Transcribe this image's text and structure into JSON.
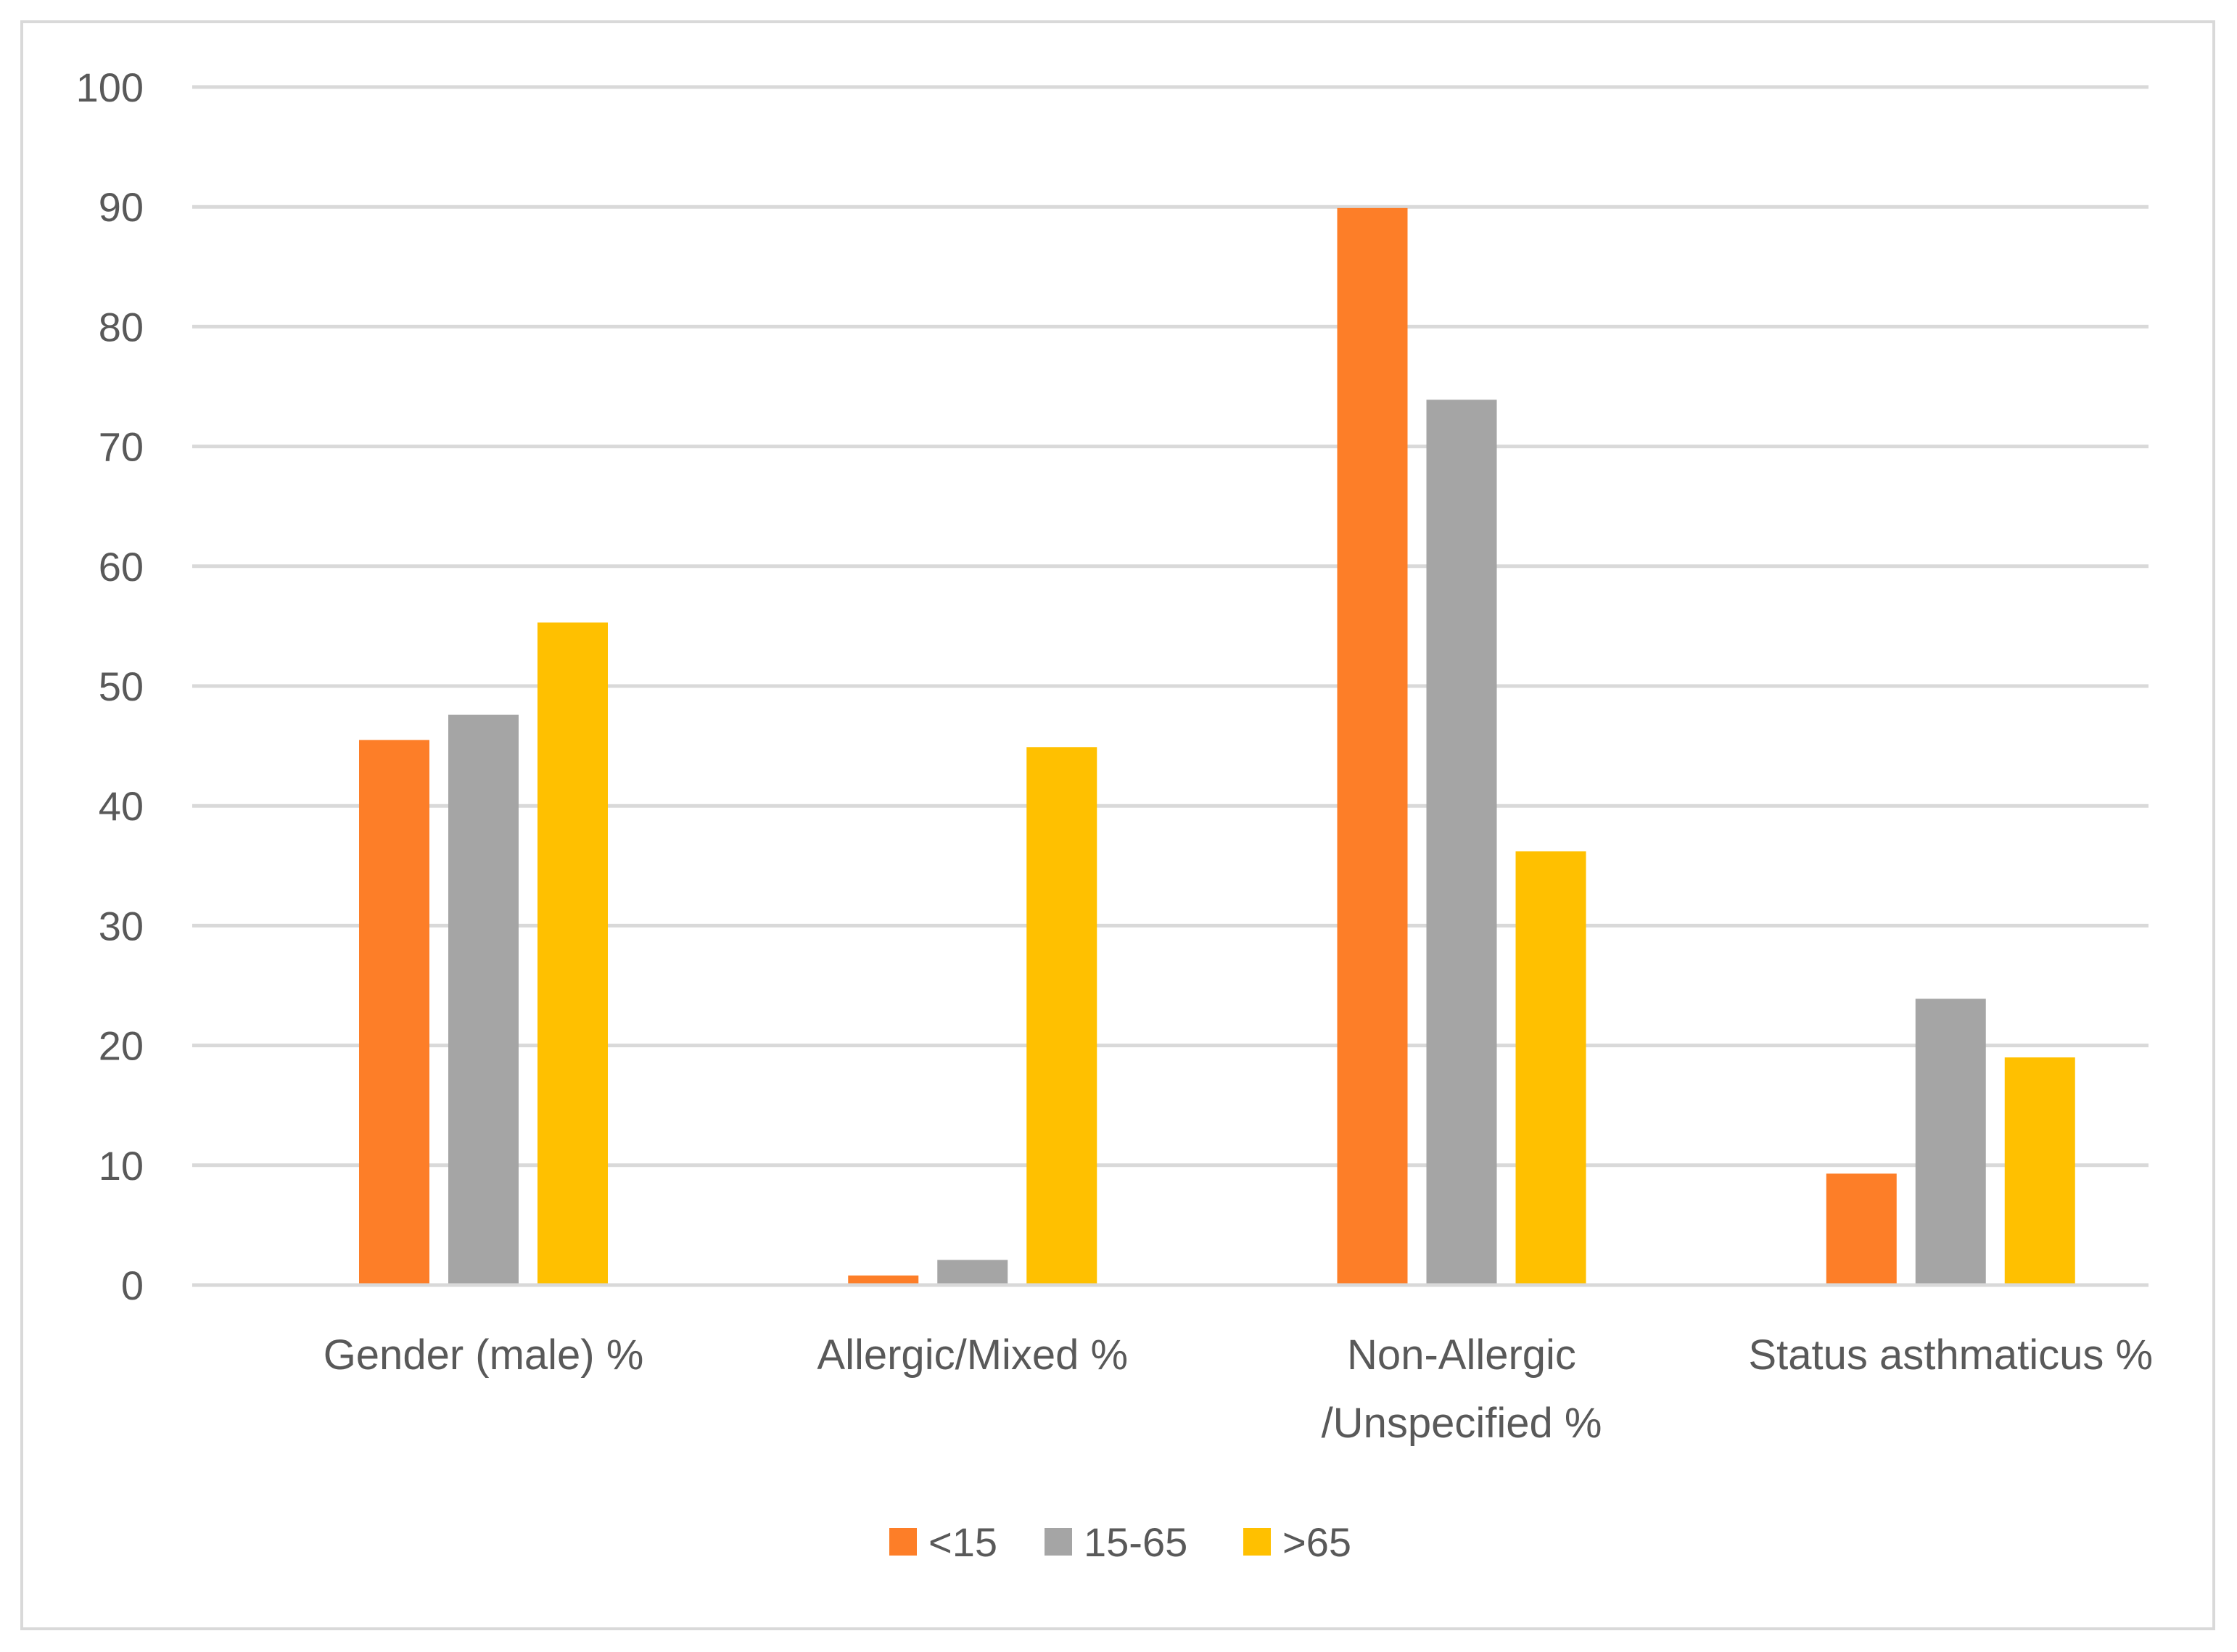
{
  "chart_data": {
    "type": "bar",
    "title": "",
    "xlabel": "",
    "ylabel": "",
    "ylim": [
      0,
      100
    ],
    "yticks": [
      0,
      10,
      20,
      30,
      40,
      50,
      60,
      70,
      80,
      90,
      100
    ],
    "grid": true,
    "legend_position": "bottom",
    "categories": [
      [
        "Gender (male) %"
      ],
      [
        "Allergic/Mixed %"
      ],
      [
        "Non-Allergic",
        "/Unspecified %"
      ],
      [
        "Status asthmaticus %"
      ]
    ],
    "series": [
      {
        "name": "<15",
        "color": "#fd7e28",
        "values": [
          45.5,
          0.8,
          89.9,
          9.3
        ]
      },
      {
        "name": "15-65",
        "color": "#a5a5a5",
        "values": [
          47.6,
          2.1,
          73.9,
          23.9
        ]
      },
      {
        "name": ">65",
        "color": "#ffc000",
        "values": [
          55.3,
          44.9,
          36.2,
          19.0
        ]
      }
    ]
  }
}
